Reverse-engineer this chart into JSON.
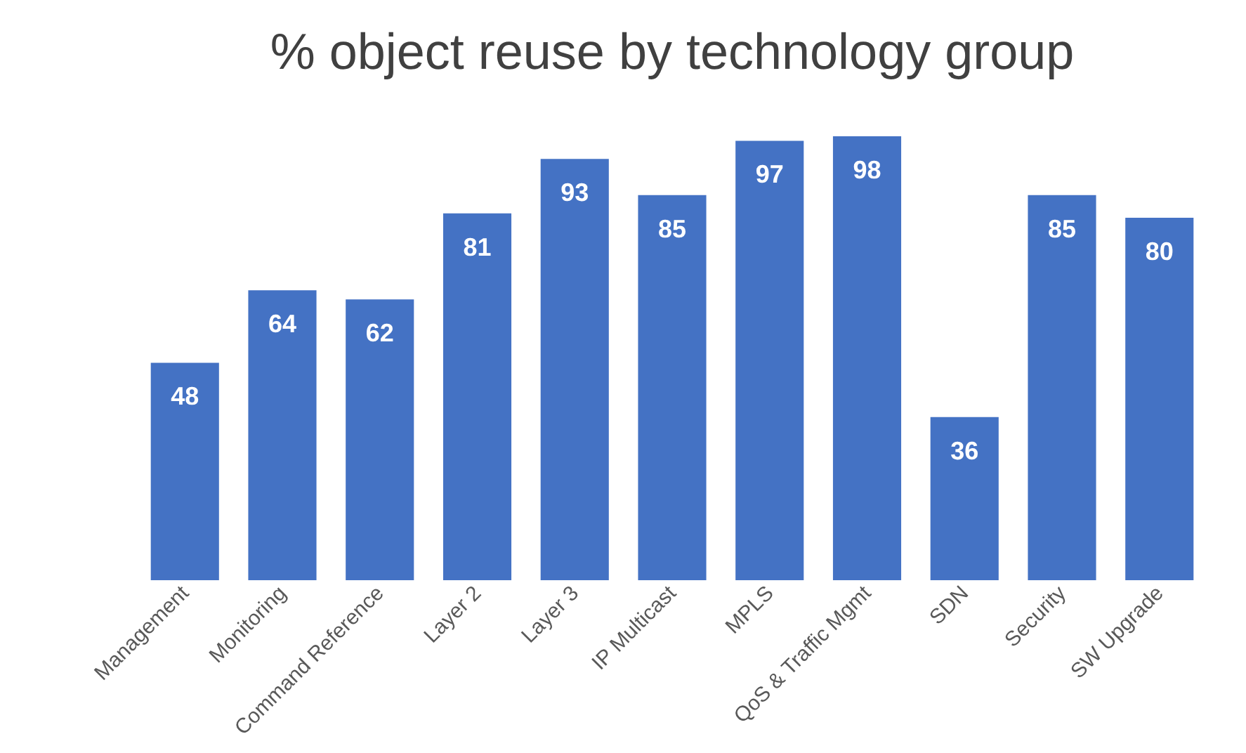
{
  "chart_data": {
    "type": "bar",
    "title": "% object reuse by technology group",
    "categories": [
      "Management",
      "Monitoring",
      "Command Reference",
      "Layer 2",
      "Layer 3",
      "IP Multicast",
      "MPLS",
      "QoS & Traffic Mgmt",
      "SDN",
      "Security",
      "SW Upgrade"
    ],
    "values": [
      48,
      64,
      62,
      81,
      93,
      85,
      97,
      98,
      36,
      85,
      80
    ],
    "color": "#4472c4",
    "data_labels": true
  }
}
